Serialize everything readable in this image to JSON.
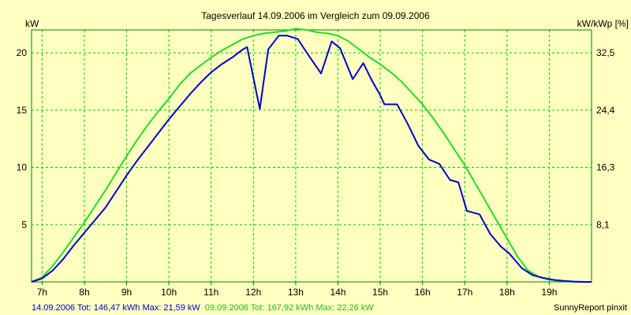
{
  "chart_data": {
    "type": "line",
    "title": "Tagesverlauf 14.09.2006 im Vergleich zum 09.09.2006",
    "ylabel_left": "kW",
    "ylabel_right": "kW/kWp [%]",
    "ylim": [
      0,
      22
    ],
    "right_ticks": [
      "8,1",
      "16,3",
      "24,4",
      "32,5"
    ],
    "y_ticks": [
      5,
      10,
      15,
      20
    ],
    "xlim": [
      6.75,
      20.0
    ],
    "x_ticks": [
      {
        "x": 7,
        "label": "7h"
      },
      {
        "x": 8,
        "label": "8h"
      },
      {
        "x": 9,
        "label": "9h"
      },
      {
        "x": 10,
        "label": "10h"
      },
      {
        "x": 11,
        "label": "11h"
      },
      {
        "x": 12,
        "label": "12h"
      },
      {
        "x": 13,
        "label": "13h"
      },
      {
        "x": 14,
        "label": "14h"
      },
      {
        "x": 15,
        "label": "15h"
      },
      {
        "x": 16,
        "label": "16h"
      },
      {
        "x": 17,
        "label": "17h"
      },
      {
        "x": 18,
        "label": "18h"
      },
      {
        "x": 19,
        "label": "19h"
      }
    ],
    "grid": true,
    "colors": {
      "background": "#ffffc0",
      "grid": "#00cc00",
      "axis": "#008000",
      "series1": "#0000cc",
      "series2": "#22dd22"
    },
    "series": [
      {
        "name": "14.09.2006",
        "legend": "14.09.2006 Tot: 146,47 kWh Max: 21,59 kW",
        "color": "#0000cc",
        "points": [
          [
            6.75,
            0.0
          ],
          [
            7.0,
            0.3
          ],
          [
            7.25,
            1.0
          ],
          [
            7.5,
            2.0
          ],
          [
            7.75,
            3.2
          ],
          [
            8.0,
            4.3
          ],
          [
            8.25,
            5.4
          ],
          [
            8.5,
            6.5
          ],
          [
            8.75,
            7.9
          ],
          [
            9.0,
            9.3
          ],
          [
            9.25,
            10.6
          ],
          [
            9.5,
            11.8
          ],
          [
            9.75,
            13.0
          ],
          [
            10.0,
            14.2
          ],
          [
            10.25,
            15.3
          ],
          [
            10.5,
            16.4
          ],
          [
            10.75,
            17.4
          ],
          [
            11.0,
            18.3
          ],
          [
            11.25,
            19.0
          ],
          [
            11.5,
            19.6
          ],
          [
            11.75,
            20.3
          ],
          [
            11.85,
            20.5
          ],
          [
            12.15,
            15.1
          ],
          [
            12.35,
            20.3
          ],
          [
            12.6,
            21.5
          ],
          [
            12.8,
            21.5
          ],
          [
            13.05,
            21.2
          ],
          [
            13.3,
            19.8
          ],
          [
            13.6,
            18.2
          ],
          [
            13.85,
            21.0
          ],
          [
            14.05,
            20.4
          ],
          [
            14.35,
            17.7
          ],
          [
            14.6,
            19.1
          ],
          [
            14.8,
            17.6
          ],
          [
            15.0,
            16.3
          ],
          [
            15.1,
            15.5
          ],
          [
            15.4,
            15.5
          ],
          [
            15.65,
            13.8
          ],
          [
            15.9,
            11.9
          ],
          [
            16.15,
            10.7
          ],
          [
            16.4,
            10.3
          ],
          [
            16.65,
            8.9
          ],
          [
            16.85,
            8.7
          ],
          [
            17.05,
            6.2
          ],
          [
            17.35,
            5.9
          ],
          [
            17.6,
            4.2
          ],
          [
            17.85,
            3.1
          ],
          [
            18.05,
            2.5
          ],
          [
            18.35,
            1.2
          ],
          [
            18.6,
            0.6
          ],
          [
            18.85,
            0.35
          ],
          [
            19.1,
            0.18
          ],
          [
            19.35,
            0.08
          ],
          [
            19.6,
            0.03
          ],
          [
            19.85,
            0.0
          ],
          [
            20.0,
            0.0
          ]
        ]
      },
      {
        "name": "09.09.2006",
        "legend": "09.09.2006 Tot: 167,92 kWh Max: 22,26 kW",
        "color": "#22dd22",
        "points": [
          [
            6.75,
            0.0
          ],
          [
            7.0,
            0.4
          ],
          [
            7.25,
            1.4
          ],
          [
            7.5,
            2.6
          ],
          [
            7.75,
            3.9
          ],
          [
            8.0,
            5.2
          ],
          [
            8.25,
            6.6
          ],
          [
            8.5,
            8.0
          ],
          [
            8.75,
            9.5
          ],
          [
            9.0,
            11.0
          ],
          [
            9.25,
            12.4
          ],
          [
            9.5,
            13.7
          ],
          [
            9.75,
            14.9
          ],
          [
            10.0,
            16.0
          ],
          [
            10.25,
            17.2
          ],
          [
            10.5,
            18.2
          ],
          [
            10.75,
            18.9
          ],
          [
            11.0,
            19.6
          ],
          [
            11.25,
            20.2
          ],
          [
            11.5,
            20.7
          ],
          [
            11.75,
            21.2
          ],
          [
            12.0,
            21.5
          ],
          [
            12.25,
            21.7
          ],
          [
            12.5,
            21.8
          ],
          [
            12.75,
            21.9
          ],
          [
            13.0,
            22.1
          ],
          [
            13.25,
            22.0
          ],
          [
            13.5,
            21.8
          ],
          [
            13.75,
            21.7
          ],
          [
            14.0,
            21.5
          ],
          [
            14.25,
            21.0
          ],
          [
            14.5,
            20.3
          ],
          [
            14.75,
            19.6
          ],
          [
            15.0,
            19.0
          ],
          [
            15.25,
            18.3
          ],
          [
            15.5,
            17.5
          ],
          [
            15.75,
            16.5
          ],
          [
            16.0,
            15.5
          ],
          [
            16.25,
            14.3
          ],
          [
            16.5,
            13.0
          ],
          [
            16.75,
            11.6
          ],
          [
            17.0,
            10.2
          ],
          [
            17.25,
            8.6
          ],
          [
            17.5,
            7.0
          ],
          [
            17.75,
            5.4
          ],
          [
            18.0,
            3.8
          ],
          [
            18.25,
            2.2
          ],
          [
            18.5,
            1.0
          ],
          [
            18.75,
            0.45
          ],
          [
            19.0,
            0.2
          ],
          [
            19.25,
            0.08
          ],
          [
            19.5,
            0.02
          ],
          [
            19.75,
            0.0
          ],
          [
            20.0,
            0.0
          ]
        ]
      }
    ]
  },
  "footer": {
    "legend1": "14.09.2006 Tot: 146,47 kWh Max: 21,59 kW",
    "legend2": "09.09.2006 Tot: 167,92 kWh Max: 22,26 kW",
    "credit": "SunnyReport pinxit"
  }
}
